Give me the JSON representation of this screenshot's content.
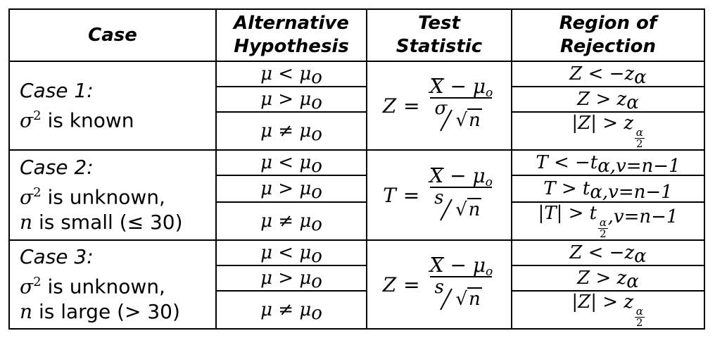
{
  "headers": {
    "case": "Case",
    "alt_line1": "Alternative",
    "alt_line2": "Hypothesis",
    "stat_line1": "Test",
    "stat_line2": "Statistic",
    "rej_line1": "Region of",
    "rej_line2": "Rejection"
  },
  "cases": [
    {
      "title": "Case 1:",
      "line2_sigma": "σ",
      "line2_sup": "2",
      "line2_text": " is known",
      "line3_var": "",
      "line3_text": "",
      "stat_lhs": "Z",
      "stat_den": "σ",
      "hypotheses": [
        "μ < μ",
        "μ > μ",
        "μ ≠ μ"
      ],
      "hyp_sub": "o",
      "rejections": [
        {
          "text": "Z < −z",
          "sub": "α"
        },
        {
          "text": "Z > z",
          "sub": "α"
        },
        {
          "text": "|Z| > z",
          "frac_num": "α",
          "frac_den": "2",
          "tail": ""
        }
      ]
    },
    {
      "title": "Case 2:",
      "line2_sigma": "σ",
      "line2_sup": "2",
      "line2_text": " is unknown,",
      "line3_var": "n",
      "line3_text": " is small (≤ 30)",
      "stat_lhs": "T",
      "stat_den": "s",
      "hypotheses": [
        "μ < μ",
        "μ > μ",
        "μ ≠ μ"
      ],
      "hyp_sub": "o",
      "rejections": [
        {
          "text": "T < −t",
          "sub": "α,v=n−1"
        },
        {
          "text": "T > t",
          "sub": "α,v=n−1"
        },
        {
          "text": "|T| > t",
          "frac_num": "α",
          "frac_den": "2",
          "tail": ",v=n−1"
        }
      ]
    },
    {
      "title": "Case 3:",
      "line2_sigma": "σ",
      "line2_sup": "2",
      "line2_text": " is unknown,",
      "line3_var": "n",
      "line3_text": " is large (> 30)",
      "stat_lhs": "Z",
      "stat_den": "s",
      "hypotheses": [
        "μ < μ",
        "μ > μ",
        "μ ≠ μ"
      ],
      "hyp_sub": "o",
      "rejections": [
        {
          "text": "Z < −z",
          "sub": "α"
        },
        {
          "text": "Z > z",
          "sub": "α"
        },
        {
          "text": "|Z| > z",
          "frac_num": "α",
          "frac_den": "2",
          "tail": ""
        }
      ]
    }
  ],
  "stat_num_var": "X",
  "stat_num_mid": " − μ",
  "stat_num_sub": "o",
  "stat_root_var": "n",
  "stat_eq": "=",
  "sqrt_sign": "√"
}
